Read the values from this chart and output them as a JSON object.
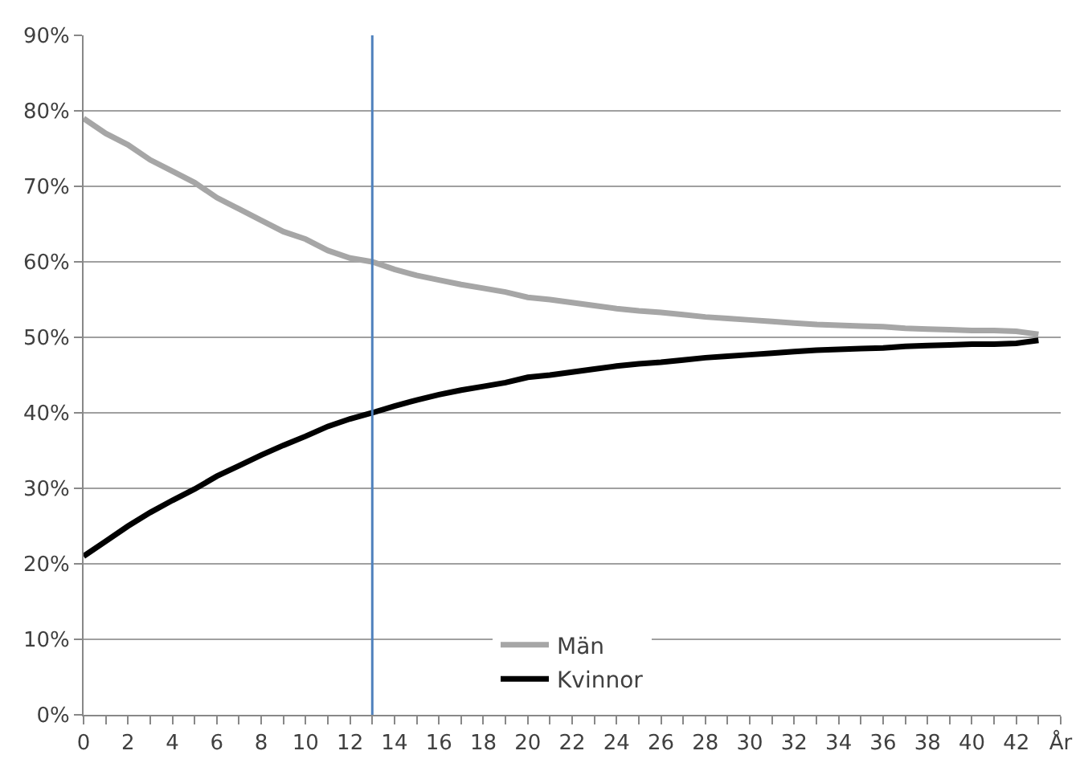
{
  "chart_data": {
    "type": "line",
    "x": [
      0,
      1,
      2,
      3,
      4,
      5,
      6,
      7,
      8,
      9,
      10,
      11,
      12,
      13,
      14,
      15,
      16,
      17,
      18,
      19,
      20,
      21,
      22,
      23,
      24,
      25,
      26,
      27,
      28,
      29,
      30,
      31,
      32,
      33,
      34,
      35,
      36,
      37,
      38,
      39,
      40,
      41,
      42,
      43
    ],
    "series": [
      {
        "name": "Män",
        "color": "#a6a6a6",
        "values": [
          79,
          77,
          75.5,
          73.5,
          72,
          70.5,
          68.5,
          67,
          65.5,
          64,
          63,
          61.5,
          60.5,
          60,
          59,
          58.2,
          57.6,
          57,
          56.5,
          56,
          55.3,
          55,
          54.6,
          54.2,
          53.8,
          53.5,
          53.3,
          53,
          52.7,
          52.5,
          52.3,
          52.1,
          51.9,
          51.7,
          51.6,
          51.5,
          51.4,
          51.2,
          51.1,
          51,
          50.9,
          50.9,
          50.8,
          50.4
        ]
      },
      {
        "name": "Kvinnor",
        "color": "#000000",
        "values": [
          21,
          23,
          25,
          26.8,
          28.4,
          29.9,
          31.6,
          33,
          34.4,
          35.7,
          36.9,
          38.2,
          39.2,
          40,
          40.9,
          41.7,
          42.4,
          43,
          43.5,
          44,
          44.7,
          45,
          45.4,
          45.8,
          46.2,
          46.5,
          46.7,
          47,
          47.3,
          47.5,
          47.7,
          47.9,
          48.1,
          48.3,
          48.4,
          48.5,
          48.6,
          48.8,
          48.9,
          49,
          49.1,
          49.1,
          49.2,
          49.6
        ]
      }
    ],
    "xlim": [
      0,
      44
    ],
    "xticks": [
      0,
      {
        "value": 1,
        "label": null
      },
      2,
      {
        "value": 3,
        "label": null
      },
      4,
      {
        "value": 5,
        "label": null
      },
      6,
      {
        "value": 7,
        "label": null
      },
      8,
      {
        "value": 9,
        "label": null
      },
      10,
      {
        "value": 11,
        "label": null
      },
      12,
      {
        "value": 13,
        "label": null
      },
      14,
      {
        "value": 15,
        "label": null
      },
      16,
      {
        "value": 17,
        "label": null
      },
      18,
      {
        "value": 19,
        "label": null
      },
      20,
      {
        "value": 21,
        "label": null
      },
      22,
      {
        "value": 23,
        "label": null
      },
      24,
      {
        "value": 25,
        "label": null
      },
      26,
      {
        "value": 27,
        "label": null
      },
      28,
      {
        "value": 29,
        "label": null
      },
      30,
      {
        "value": 31,
        "label": null
      },
      32,
      {
        "value": 33,
        "label": null
      },
      34,
      {
        "value": 35,
        "label": null
      },
      36,
      {
        "value": 37,
        "label": null
      },
      38,
      {
        "value": 39,
        "label": null
      },
      40,
      {
        "value": 41,
        "label": null
      },
      42,
      {
        "value": 43,
        "label": null
      },
      {
        "value": 44,
        "label": "År"
      }
    ],
    "ylim": [
      0,
      90
    ],
    "yticks": [
      {
        "value": 0,
        "label": "0%"
      },
      {
        "value": 10,
        "label": "10%"
      },
      {
        "value": 20,
        "label": "20%"
      },
      {
        "value": 30,
        "label": "30%"
      },
      {
        "value": 40,
        "label": "40%"
      },
      {
        "value": 50,
        "label": "50%"
      },
      {
        "value": 60,
        "label": "60%"
      },
      {
        "value": 70,
        "label": "70%"
      },
      {
        "value": 80,
        "label": "80%"
      },
      {
        "value": 90,
        "label": "90%"
      }
    ],
    "ref_lines": [
      {
        "axis": "x",
        "value": 13,
        "color": "#4f81bd"
      }
    ],
    "grid": "y",
    "legend": "bottom",
    "marker": "none",
    "line_style": "solid"
  }
}
